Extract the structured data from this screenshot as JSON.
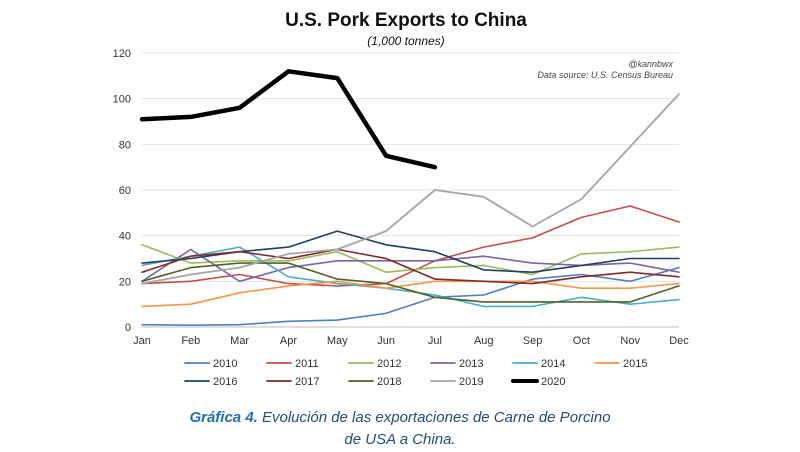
{
  "chart_data": {
    "type": "line",
    "title": "U.S. Pork Exports to China",
    "subtitle": "(1,000 tonnes)",
    "credit": "@kannbwx",
    "source_note": "Data source: U.S. Census Bureau",
    "categories": [
      "Jan",
      "Feb",
      "Mar",
      "Apr",
      "May",
      "Jun",
      "Jul",
      "Aug",
      "Sep",
      "Oct",
      "Nov",
      "Dec"
    ],
    "ylim": [
      0,
      120
    ],
    "yticks": [
      "0",
      "20",
      "40",
      "60",
      "80",
      "100",
      "120"
    ],
    "grid": true,
    "legend_position": "bottom",
    "series": [
      {
        "name": "2010",
        "color": "#4f7fbd",
        "width": 1.6,
        "values": [
          1,
          0.8,
          1,
          2.5,
          3,
          6,
          13,
          14,
          21,
          23,
          20,
          26
        ]
      },
      {
        "name": "2011",
        "color": "#c0504d",
        "width": 1.6,
        "values": [
          19,
          20,
          23,
          19,
          18,
          19,
          29,
          35,
          39,
          48,
          53,
          46
        ]
      },
      {
        "name": "2012",
        "color": "#9bbb59",
        "width": 1.6,
        "values": [
          36,
          28,
          29,
          29,
          33,
          24,
          26,
          27,
          23,
          32,
          33,
          35
        ]
      },
      {
        "name": "2013",
        "color": "#8064a2",
        "width": 1.6,
        "values": [
          20,
          34,
          20,
          26,
          29,
          29,
          29,
          31,
          28,
          27,
          28,
          24
        ]
      },
      {
        "name": "2014",
        "color": "#4bacc6",
        "width": 1.6,
        "values": [
          27,
          31,
          35,
          22,
          19,
          17,
          14,
          9,
          9,
          13,
          10,
          12
        ]
      },
      {
        "name": "2015",
        "color": "#f79646",
        "width": 1.6,
        "values": [
          9,
          10,
          15,
          18,
          20,
          17,
          20,
          20,
          20,
          17,
          17,
          19
        ]
      },
      {
        "name": "2016",
        "color": "#1f3f66",
        "width": 1.6,
        "values": [
          28,
          30,
          33,
          35,
          42,
          36,
          33,
          25,
          24,
          27,
          30,
          30
        ]
      },
      {
        "name": "2017",
        "color": "#7f2b2b",
        "width": 1.6,
        "values": [
          24,
          31,
          33,
          30,
          34,
          30,
          21,
          20,
          19,
          22,
          24,
          22
        ]
      },
      {
        "name": "2018",
        "color": "#4f6228",
        "width": 1.6,
        "values": [
          20,
          26,
          28,
          28,
          21,
          19,
          13,
          11,
          11,
          11,
          11,
          18
        ]
      },
      {
        "name": "2019",
        "color": "#a5a5a5",
        "width": 1.8,
        "values": [
          19,
          23,
          26,
          32,
          34,
          42,
          60,
          57,
          44,
          56,
          79,
          102
        ]
      },
      {
        "name": "2020",
        "color": "#000000",
        "width": 4.5,
        "values": [
          91,
          92,
          96,
          112,
          109,
          75,
          70,
          null,
          null,
          null,
          null,
          null
        ]
      }
    ]
  },
  "caption": {
    "label": "Gráfica 4.",
    "text1": "Evolución de las exportaciones de Carne de Porcino",
    "text2": "de USA a China."
  }
}
